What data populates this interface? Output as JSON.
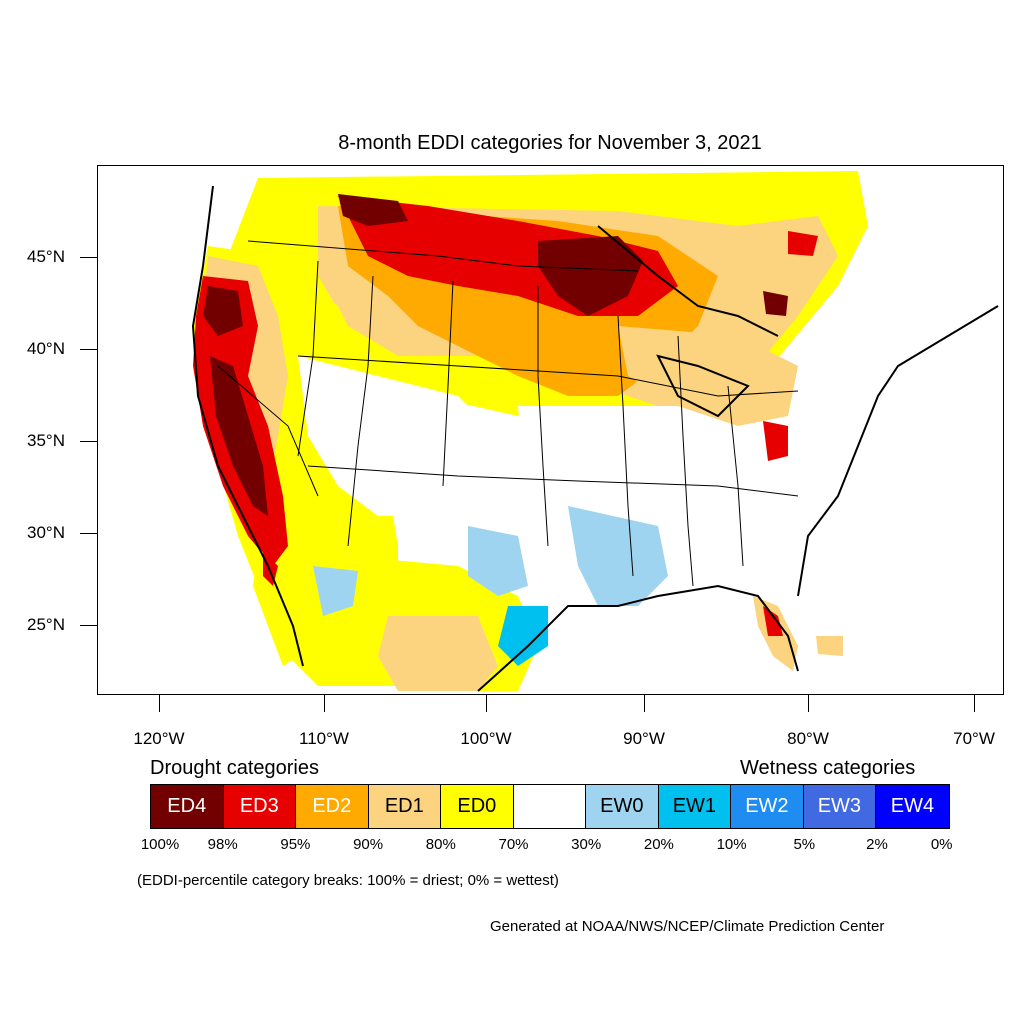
{
  "title": "8-month EDDI categories for November 3, 2021",
  "lat_labels": [
    "45°N",
    "40°N",
    "35°N",
    "30°N",
    "25°N"
  ],
  "lon_labels": [
    "120°W",
    "110°W",
    "100°W",
    "90°W",
    "80°W",
    "70°W"
  ],
  "legend": {
    "drought_heading": "Drought categories",
    "wetness_heading": "Wetness categories",
    "categories": [
      {
        "label": "ED4",
        "color": "#730000",
        "text_color": "#ffffff"
      },
      {
        "label": "ED3",
        "color": "#e60000",
        "text_color": "#ffffff"
      },
      {
        "label": "ED2",
        "color": "#ffaa00",
        "text_color": "#ffffff"
      },
      {
        "label": "ED1",
        "color": "#fcd37f",
        "text_color": "#000000"
      },
      {
        "label": "ED0",
        "color": "#ffff00",
        "text_color": "#000000"
      },
      {
        "label": "",
        "color": "#ffffff",
        "text_color": "#000000"
      },
      {
        "label": "EW0",
        "color": "#9ed4f0",
        "text_color": "#000000"
      },
      {
        "label": "EW1",
        "color": "#00c0f0",
        "text_color": "#000000"
      },
      {
        "label": "EW2",
        "color": "#1e8cf0",
        "text_color": "#ffffff"
      },
      {
        "label": "EW3",
        "color": "#4169e1",
        "text_color": "#ffffff"
      },
      {
        "label": "EW4",
        "color": "#0000ff",
        "text_color": "#ffffff"
      }
    ],
    "breaks": [
      "100%",
      "98%",
      "95%",
      "90%",
      "80%",
      "70%",
      "30%",
      "20%",
      "10%",
      "5%",
      "2%",
      "0%"
    ]
  },
  "note": "(EDDI-percentile category breaks: 100% = driest; 0% = wettest)",
  "credit": "Generated at NOAA/NWS/NCEP/Climate Prediction Center"
}
